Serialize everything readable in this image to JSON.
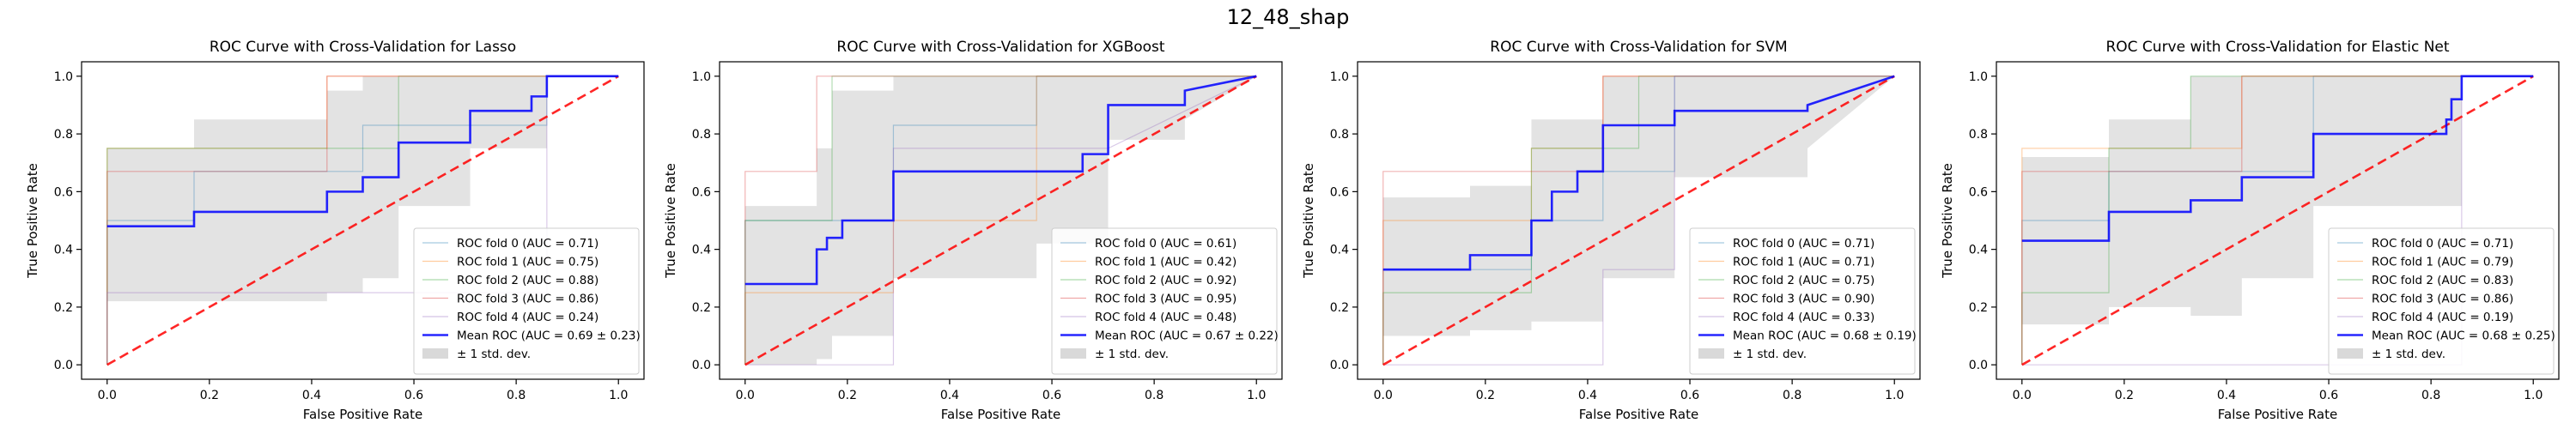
{
  "figure": {
    "suptitle": "12_48_shap"
  },
  "chart_data": [
    {
      "type": "line",
      "title": "ROC Curve with Cross-Validation for Lasso",
      "xlabel": "False Positive Rate",
      "ylabel": "True Positive Rate",
      "xlim": [
        -0.05,
        1.05
      ],
      "ylim": [
        -0.05,
        1.05
      ],
      "xticks": [
        "0.0",
        "0.2",
        "0.4",
        "0.6",
        "0.8",
        "1.0"
      ],
      "yticks": [
        "0.0",
        "0.2",
        "0.4",
        "0.6",
        "0.8",
        "1.0"
      ],
      "legend": "lower-right",
      "folds": [
        {
          "name": "ROC fold 0 (AUC = 0.71)",
          "color": "#1f77b4",
          "x": [
            0,
            0,
            0.17,
            0.17,
            0.5,
            0.5,
            0.86,
            0.86,
            1
          ],
          "y": [
            0,
            0.5,
            0.5,
            0.67,
            0.67,
            0.83,
            0.83,
            1,
            1
          ]
        },
        {
          "name": "ROC fold 1 (AUC = 0.75)",
          "color": "#ff7f0e",
          "x": [
            0,
            0,
            0.43,
            0.43,
            0.57,
            0.57,
            1
          ],
          "y": [
            0,
            0.75,
            0.75,
            1,
            1,
            1,
            1
          ]
        },
        {
          "name": "ROC fold 2 (AUC = 0.88)",
          "color": "#2ca02c",
          "x": [
            0,
            0,
            0.5,
            0.5,
            0.57,
            0.57,
            1
          ],
          "y": [
            0,
            0.75,
            0.75,
            0.75,
            0.75,
            1,
            1
          ]
        },
        {
          "name": "ROC fold 3 (AUC = 0.86)",
          "color": "#d62728",
          "x": [
            0,
            0,
            0.43,
            0.43,
            1
          ],
          "y": [
            0,
            0.67,
            0.67,
            1,
            1
          ]
        },
        {
          "name": "ROC fold 4 (AUC = 0.24)",
          "color": "#9467bd",
          "x": [
            0,
            0,
            0.43,
            0.43,
            0.86,
            0.86,
            1
          ],
          "y": [
            0,
            0.25,
            0.25,
            0.25,
            0.25,
            1,
            1
          ]
        }
      ],
      "mean": {
        "name": "Mean ROC (AUC = 0.69 ± 0.23)",
        "color": "#0000ff",
        "x": [
          0,
          0.17,
          0.17,
          0.43,
          0.43,
          0.46,
          0.46,
          0.5,
          0.5,
          0.57,
          0.57,
          0.71,
          0.71,
          0.83,
          0.83,
          0.86,
          0.86,
          1
        ],
        "y": [
          0.48,
          0.48,
          0.53,
          0.53,
          0.6,
          0.6,
          0.6,
          0.6,
          0.65,
          0.65,
          0.77,
          0.77,
          0.88,
          0.88,
          0.93,
          0.93,
          1,
          1
        ]
      },
      "band": {
        "name": "± 1 std. dev.",
        "color": "#c0c0c0",
        "x": [
          0,
          0.17,
          0.17,
          0.43,
          0.43,
          0.5,
          0.5,
          0.57,
          0.57,
          0.71,
          0.71,
          0.86,
          0.86,
          1
        ],
        "upper": [
          0.75,
          0.75,
          0.85,
          0.85,
          0.95,
          0.95,
          1,
          1,
          1,
          1,
          1,
          1,
          1,
          1
        ],
        "lower": [
          0.22,
          0.22,
          0.22,
          0.22,
          0.25,
          0.25,
          0.3,
          0.3,
          0.55,
          0.55,
          0.75,
          0.75,
          1,
          1
        ]
      },
      "chance": {
        "color": "#ff0000"
      }
    },
    {
      "type": "line",
      "title": "ROC Curve with Cross-Validation for XGBoost",
      "xlabel": "False Positive Rate",
      "ylabel": "True Positive Rate",
      "xlim": [
        -0.05,
        1.05
      ],
      "ylim": [
        -0.05,
        1.05
      ],
      "xticks": [
        "0.0",
        "0.2",
        "0.4",
        "0.6",
        "0.8",
        "1.0"
      ],
      "yticks": [
        "0.0",
        "0.2",
        "0.4",
        "0.6",
        "0.8",
        "1.0"
      ],
      "legend": "lower-right",
      "folds": [
        {
          "name": "ROC fold 0 (AUC = 0.61)",
          "color": "#1f77b4",
          "x": [
            0,
            0,
            0.14,
            0.14,
            0.29,
            0.29,
            0.57,
            0.57,
            1
          ],
          "y": [
            0,
            0.5,
            0.5,
            0.5,
            0.5,
            0.83,
            0.83,
            1,
            1
          ]
        },
        {
          "name": "ROC fold 1 (AUC = 0.42)",
          "color": "#ff7f0e",
          "x": [
            0,
            0,
            0.29,
            0.29,
            0.57,
            0.57,
            1
          ],
          "y": [
            0,
            0.25,
            0.25,
            0.5,
            0.5,
            1,
            1
          ]
        },
        {
          "name": "ROC fold 2 (AUC = 0.92)",
          "color": "#2ca02c",
          "x": [
            0,
            0,
            0.17,
            0.17,
            1
          ],
          "y": [
            0,
            0.5,
            0.5,
            1,
            1
          ]
        },
        {
          "name": "ROC fold 3 (AUC = 0.95)",
          "color": "#d62728",
          "x": [
            0,
            0,
            0.14,
            0.14,
            1
          ],
          "y": [
            0,
            0.67,
            0.67,
            1,
            1
          ]
        },
        {
          "name": "ROC fold 4 (AUC = 0.48)",
          "color": "#9467bd",
          "x": [
            0,
            0,
            0.29,
            0.29,
            0.71,
            0.71,
            1
          ],
          "y": [
            0,
            0,
            0,
            0.75,
            0.75,
            0.75,
            1
          ]
        }
      ],
      "mean": {
        "name": "Mean ROC (AUC = 0.67 ± 0.22)",
        "color": "#0000ff",
        "x": [
          0,
          0.14,
          0.14,
          0.16,
          0.16,
          0.19,
          0.19,
          0.29,
          0.29,
          0.57,
          0.57,
          0.66,
          0.66,
          0.71,
          0.71,
          0.86,
          0.86,
          1
        ],
        "y": [
          0.28,
          0.28,
          0.4,
          0.4,
          0.44,
          0.44,
          0.5,
          0.5,
          0.67,
          0.67,
          0.67,
          0.67,
          0.73,
          0.73,
          0.9,
          0.9,
          0.95,
          1
        ]
      },
      "band": {
        "name": "± 1 std. dev.",
        "color": "#c0c0c0",
        "x": [
          0,
          0.14,
          0.14,
          0.17,
          0.17,
          0.29,
          0.29,
          0.57,
          0.57,
          0.71,
          0.71,
          0.86,
          0.86,
          1
        ],
        "upper": [
          0.55,
          0.55,
          0.75,
          0.75,
          0.95,
          0.95,
          1,
          1,
          1,
          1,
          1,
          1,
          1,
          1
        ],
        "lower": [
          0,
          0,
          0.02,
          0.02,
          0.1,
          0.1,
          0.3,
          0.3,
          0.42,
          0.42,
          0.78,
          0.78,
          0.85,
          1
        ]
      },
      "chance": {
        "color": "#ff0000"
      }
    },
    {
      "type": "line",
      "title": "ROC Curve with Cross-Validation for SVM",
      "xlabel": "False Positive Rate",
      "ylabel": "True Positive Rate",
      "xlim": [
        -0.05,
        1.05
      ],
      "ylim": [
        -0.05,
        1.05
      ],
      "xticks": [
        "0.0",
        "0.2",
        "0.4",
        "0.6",
        "0.8",
        "1.0"
      ],
      "yticks": [
        "0.0",
        "0.2",
        "0.4",
        "0.6",
        "0.8",
        "1.0"
      ],
      "legend": "lower-right",
      "folds": [
        {
          "name": "ROC fold 0 (AUC = 0.71)",
          "color": "#1f77b4",
          "x": [
            0,
            0,
            0.29,
            0.29,
            0.43,
            0.43,
            0.57,
            0.57,
            1
          ],
          "y": [
            0,
            0.33,
            0.33,
            0.5,
            0.5,
            0.67,
            0.67,
            1,
            1
          ]
        },
        {
          "name": "ROC fold 1 (AUC = 0.71)",
          "color": "#ff7f0e",
          "x": [
            0,
            0,
            0.29,
            0.29,
            0.43,
            0.43,
            1
          ],
          "y": [
            0,
            0.5,
            0.5,
            0.75,
            0.75,
            1,
            1
          ]
        },
        {
          "name": "ROC fold 2 (AUC = 0.75)",
          "color": "#2ca02c",
          "x": [
            0,
            0,
            0.29,
            0.29,
            0.5,
            0.5,
            1
          ],
          "y": [
            0,
            0.25,
            0.25,
            0.75,
            0.75,
            1,
            1
          ]
        },
        {
          "name": "ROC fold 3 (AUC = 0.90)",
          "color": "#d62728",
          "x": [
            0,
            0,
            0.43,
            0.43,
            1
          ],
          "y": [
            0,
            0.67,
            0.67,
            1,
            1
          ]
        },
        {
          "name": "ROC fold 4 (AUC = 0.33)",
          "color": "#9467bd",
          "x": [
            0,
            0,
            0.43,
            0.43,
            0.57,
            0.57,
            1
          ],
          "y": [
            0,
            0.0,
            0.0,
            0.33,
            0.33,
            1,
            1
          ]
        }
      ],
      "mean": {
        "name": "Mean ROC (AUC = 0.68 ± 0.19)",
        "color": "#0000ff",
        "x": [
          0,
          0.17,
          0.17,
          0.29,
          0.29,
          0.33,
          0.33,
          0.38,
          0.38,
          0.43,
          0.43,
          0.57,
          0.57,
          0.83,
          0.83,
          1
        ],
        "y": [
          0.33,
          0.33,
          0.38,
          0.38,
          0.5,
          0.5,
          0.6,
          0.6,
          0.67,
          0.67,
          0.83,
          0.83,
          0.88,
          0.88,
          0.9,
          1
        ]
      },
      "band": {
        "name": "± 1 std. dev.",
        "color": "#c0c0c0",
        "x": [
          0,
          0.17,
          0.17,
          0.29,
          0.29,
          0.43,
          0.43,
          0.57,
          0.57,
          0.83,
          0.83,
          1
        ],
        "upper": [
          0.58,
          0.58,
          0.62,
          0.62,
          0.85,
          0.85,
          1,
          1,
          1,
          1,
          1,
          1
        ],
        "lower": [
          0.1,
          0.1,
          0.12,
          0.12,
          0.15,
          0.15,
          0.3,
          0.3,
          0.65,
          0.65,
          0.75,
          1
        ]
      },
      "chance": {
        "color": "#ff0000"
      }
    },
    {
      "type": "line",
      "title": "ROC Curve with Cross-Validation for Elastic Net",
      "xlabel": "False Positive Rate",
      "ylabel": "True Positive Rate",
      "xlim": [
        -0.05,
        1.05
      ],
      "ylim": [
        -0.05,
        1.05
      ],
      "xticks": [
        "0.0",
        "0.2",
        "0.4",
        "0.6",
        "0.8",
        "1.0"
      ],
      "yticks": [
        "0.0",
        "0.2",
        "0.4",
        "0.6",
        "0.8",
        "1.0"
      ],
      "legend": "lower-right",
      "folds": [
        {
          "name": "ROC fold 0 (AUC = 0.71)",
          "color": "#1f77b4",
          "x": [
            0,
            0,
            0.17,
            0.17,
            0.57,
            0.57,
            1
          ],
          "y": [
            0,
            0.5,
            0.5,
            0.67,
            0.67,
            1,
            1
          ]
        },
        {
          "name": "ROC fold 1 (AUC = 0.79)",
          "color": "#ff7f0e",
          "x": [
            0,
            0,
            0.43,
            0.43,
            1
          ],
          "y": [
            0,
            0.75,
            0.75,
            1,
            1
          ]
        },
        {
          "name": "ROC fold 2 (AUC = 0.83)",
          "color": "#2ca02c",
          "x": [
            0,
            0,
            0.17,
            0.17,
            0.33,
            0.33,
            1
          ],
          "y": [
            0,
            0.25,
            0.25,
            0.75,
            0.75,
            1,
            1
          ]
        },
        {
          "name": "ROC fold 3 (AUC = 0.86)",
          "color": "#d62728",
          "x": [
            0,
            0,
            0.43,
            0.43,
            1
          ],
          "y": [
            0,
            0.67,
            0.67,
            1,
            1
          ]
        },
        {
          "name": "ROC fold 4 (AUC = 0.19)",
          "color": "#9467bd",
          "x": [
            0,
            0,
            0.86,
            0.86,
            1
          ],
          "y": [
            0,
            0,
            0,
            1,
            1
          ]
        }
      ],
      "mean": {
        "name": "Mean ROC (AUC = 0.68 ± 0.25)",
        "color": "#0000ff",
        "x": [
          0,
          0.17,
          0.17,
          0.33,
          0.33,
          0.43,
          0.43,
          0.57,
          0.57,
          0.83,
          0.83,
          0.84,
          0.84,
          0.86,
          0.86,
          1
        ],
        "y": [
          0.43,
          0.43,
          0.53,
          0.53,
          0.57,
          0.57,
          0.65,
          0.65,
          0.8,
          0.8,
          0.85,
          0.85,
          0.92,
          0.92,
          1,
          1
        ]
      },
      "band": {
        "name": "± 1 std. dev.",
        "color": "#c0c0c0",
        "x": [
          0,
          0.17,
          0.17,
          0.33,
          0.33,
          0.43,
          0.43,
          0.57,
          0.57,
          0.86,
          0.86,
          1
        ],
        "upper": [
          0.72,
          0.72,
          0.85,
          0.85,
          1,
          1,
          1,
          1,
          1,
          1,
          1,
          1
        ],
        "lower": [
          0.14,
          0.14,
          0.2,
          0.2,
          0.17,
          0.17,
          0.3,
          0.3,
          0.55,
          0.55,
          1,
          1
        ]
      },
      "chance": {
        "color": "#ff0000"
      }
    }
  ]
}
